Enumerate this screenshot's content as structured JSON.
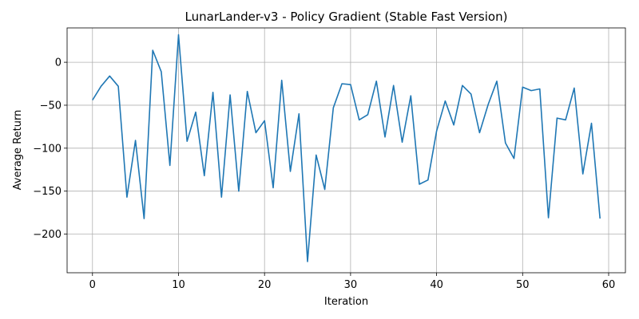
{
  "chart_data": {
    "type": "line",
    "title": "LunarLander-v3 - Policy Gradient (Stable Fast Version)",
    "xlabel": "Iteration",
    "ylabel": "Average Return",
    "xlim": [
      -2.95,
      61.95
    ],
    "ylim": [
      -245,
      40
    ],
    "xticks": [
      0,
      10,
      20,
      30,
      40,
      50,
      60
    ],
    "yticks": [
      0,
      -50,
      -100,
      -150,
      -200
    ],
    "grid": true,
    "line_color": "#1f77b4",
    "series": [
      {
        "x": [
          0,
          1,
          2,
          3,
          4,
          5,
          6,
          7,
          8,
          9,
          10,
          11,
          12,
          13,
          14,
          15,
          16,
          17,
          18,
          19,
          20,
          21,
          22,
          23,
          24,
          25,
          26,
          27,
          28,
          29,
          30,
          31,
          32,
          33,
          34,
          35,
          36,
          37,
          38,
          39,
          40,
          41,
          42,
          43,
          44,
          45,
          46,
          47,
          48,
          49,
          50,
          51,
          52,
          53,
          54,
          55,
          56,
          57,
          58,
          59
        ],
        "values": [
          -44,
          -28,
          -16,
          -28,
          -157,
          -91,
          -182,
          14,
          -11,
          -120,
          32,
          -92,
          -58,
          -132,
          -35,
          -157,
          -38,
          -150,
          -34,
          -82,
          -68,
          -146,
          -21,
          -127,
          -60,
          -232,
          -108,
          -148,
          -53,
          -25,
          -26,
          -67,
          -61,
          -22,
          -87,
          -27,
          -93,
          -39,
          -142,
          -137,
          -80,
          -45,
          -73,
          -27,
          -37,
          -82,
          -49,
          -22,
          -94,
          -112,
          -29,
          -33,
          -31,
          -181,
          -65,
          -67,
          -30,
          -130,
          -71,
          -182
        ]
      }
    ]
  }
}
